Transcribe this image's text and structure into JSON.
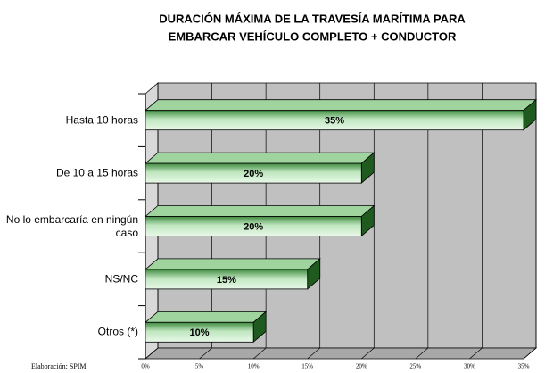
{
  "chart_data": {
    "type": "bar3d-horizontal",
    "title": [
      "DURACIÓN MÁXIMA DE LA TRAVESÍA MARÍTIMA PARA",
      "EMBARCAR VEHÍCULO COMPLETO + CONDUCTOR"
    ],
    "categories": [
      "Hasta 10 horas",
      "De 10 a 15 horas",
      "No lo embarcaría en ningún caso",
      "NS/NC",
      "Otros (*)"
    ],
    "values": [
      35,
      20,
      20,
      15,
      10
    ],
    "value_labels": [
      "35%",
      "20%",
      "20%",
      "15%",
      "10%"
    ],
    "color": "#4f9a4f",
    "xlim": [
      0,
      35
    ],
    "xticks": [
      {
        "value": 0,
        "label": "0%"
      },
      {
        "value": 5,
        "label": "5%"
      },
      {
        "value": 10,
        "label": "10%"
      },
      {
        "value": 15,
        "label": "15%"
      },
      {
        "value": 20,
        "label": "20%"
      },
      {
        "value": 25,
        "label": "25%"
      },
      {
        "value": 30,
        "label": "30%"
      },
      {
        "value": 35,
        "label": "35%"
      }
    ],
    "grid": true,
    "source": "Elaboración: SPIM"
  }
}
